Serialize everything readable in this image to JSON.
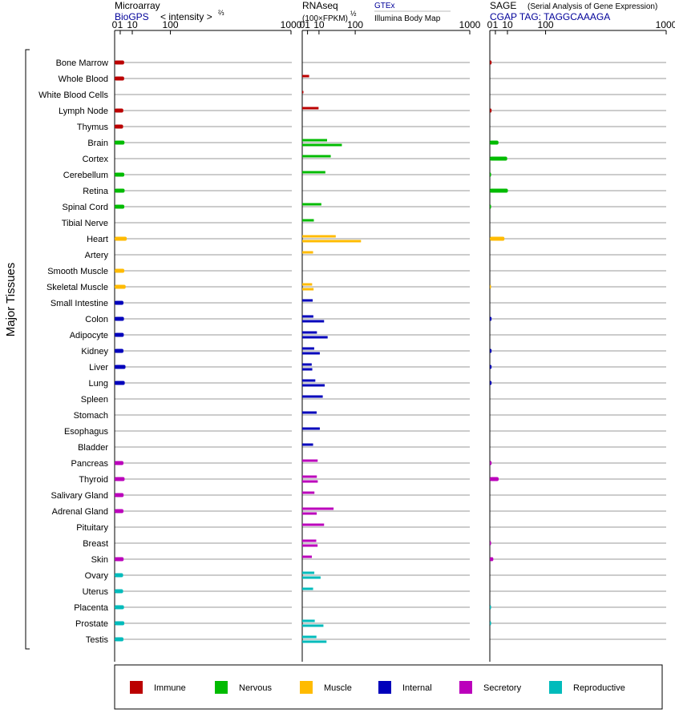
{
  "header": {
    "microarray_title": "Microarray",
    "microarray_source": "BioGPS",
    "microarray_unit": "< intensity >",
    "microarray_exp": "⅔",
    "rnaseq_title": "RNAseq",
    "rnaseq_unit": "(100×FPKM)",
    "rnaseq_exp": "½",
    "rnaseq_source1": "GTEx",
    "rnaseq_source2": "Illumina Body Map",
    "sage_title": "SAGE",
    "sage_subtitle": "(Serial Analysis of Gene Expression)",
    "sage_tag": "CGAP TAG: TAGGCAAAGA",
    "y_group_label": "Major Tissues"
  },
  "colors": {
    "Immune": "#bb0000",
    "Nervous": "#00bb00",
    "Muscle": "#ffbb00",
    "Internal": "#0000bb",
    "Secretory": "#bb00bb",
    "Reproductive": "#00bbbb",
    "source_blue": "#000099",
    "row_line": "#999999",
    "axis": "#000000"
  },
  "legend": [
    {
      "label": "Immune",
      "color": "#bb0000"
    },
    {
      "label": "Nervous",
      "color": "#00bb00"
    },
    {
      "label": "Muscle",
      "color": "#ffbb00"
    },
    {
      "label": "Internal",
      "color": "#0000bb"
    },
    {
      "label": "Secretory",
      "color": "#bb00bb"
    },
    {
      "label": "Reproductive",
      "color": "#00bbbb"
    }
  ],
  "chart_data": {
    "type": "bar",
    "orientation": "horizontal",
    "x_ticks": [
      "0",
      "1",
      "10",
      "100",
      "1000"
    ],
    "x_tick_values": [
      0,
      1,
      10,
      100,
      1000
    ],
    "x_range": [
      0,
      1000
    ],
    "x_scale": "power-transformed (0, 1, 10, 100, 1000)",
    "grid": "horizontal row lines",
    "legend_position": "bottom",
    "categories": [
      "Bone Marrow",
      "Whole Blood",
      "White Blood Cells",
      "Lymph Node",
      "Thymus",
      "Brain",
      "Cortex",
      "Cerebellum",
      "Retina",
      "Spinal Cord",
      "Tibial Nerve",
      "Heart",
      "Artery",
      "Smooth Muscle",
      "Skeletal Muscle",
      "Small Intestine",
      "Colon",
      "Adipocyte",
      "Kidney",
      "Liver",
      "Lung",
      "Spleen",
      "Stomach",
      "Esophagus",
      "Bladder",
      "Pancreas",
      "Thyroid",
      "Salivary Gland",
      "Adrenal Gland",
      "Pituitary",
      "Breast",
      "Skin",
      "Ovary",
      "Uterus",
      "Placenta",
      "Prostate",
      "Testis"
    ],
    "groups": [
      "Immune",
      "Immune",
      "Immune",
      "Immune",
      "Immune",
      "Nervous",
      "Nervous",
      "Nervous",
      "Nervous",
      "Nervous",
      "Nervous",
      "Muscle",
      "Muscle",
      "Muscle",
      "Muscle",
      "Internal",
      "Internal",
      "Internal",
      "Internal",
      "Internal",
      "Internal",
      "Internal",
      "Internal",
      "Internal",
      "Internal",
      "Secretory",
      "Secretory",
      "Secretory",
      "Secretory",
      "Secretory",
      "Secretory",
      "Secretory",
      "Reproductive",
      "Reproductive",
      "Reproductive",
      "Reproductive",
      "Reproductive"
    ],
    "panels": [
      {
        "name": "Microarray",
        "values": [
          [
            2.9
          ],
          [
            2.9
          ],
          [
            null
          ],
          [
            2.4
          ],
          [
            2.3
          ],
          [
            3.1
          ],
          [
            null
          ],
          [
            3.0
          ],
          [
            3.2
          ],
          [
            3.0
          ],
          [
            null
          ],
          [
            4.7
          ],
          [
            null
          ],
          [
            3.0
          ],
          [
            3.9
          ],
          [
            2.5
          ],
          [
            2.8
          ],
          [
            2.7
          ],
          [
            2.5
          ],
          [
            3.8
          ],
          [
            3.3
          ],
          [
            null
          ],
          [
            null
          ],
          [
            null
          ],
          [
            null
          ],
          [
            2.5
          ],
          [
            3.2
          ],
          [
            2.6
          ],
          [
            2.5
          ],
          [
            null
          ],
          [
            null
          ],
          [
            2.6
          ],
          [
            2.3
          ],
          [
            2.3
          ],
          [
            2.8
          ],
          [
            3.0
          ],
          [
            2.5
          ]
        ]
      },
      {
        "name": "RNAseq",
        "values": [
          [
            null
          ],
          [
            1.7
          ],
          [
            0.05
          ],
          [
            9.5
          ],
          [
            null
          ],
          [
            22,
            56
          ],
          [
            29
          ],
          [
            19
          ],
          [
            null
          ],
          [
            13
          ],
          [
            4.8
          ],
          [
            40,
            123
          ],
          [
            4.2
          ],
          [
            null
          ],
          [
            3.5,
            4.6
          ],
          [
            3.9
          ],
          [
            4.4,
            17
          ],
          [
            7.7,
            23
          ],
          [
            5.1,
            11
          ],
          [
            3.2,
            3.6
          ],
          [
            6.1,
            18
          ],
          [
            15
          ],
          [
            7.4
          ],
          [
            11
          ],
          [
            4.2
          ],
          [
            8.5
          ],
          [
            7.6,
            8.6
          ],
          [
            5.3
          ],
          [
            35,
            7.5
          ],
          [
            17
          ],
          [
            7.0,
            8.4
          ],
          [
            3.3
          ],
          [
            5.2,
            12
          ],
          [
            4.2
          ],
          [
            null
          ],
          [
            5.6,
            16
          ],
          [
            7.2,
            21
          ]
        ]
      },
      {
        "name": "SAGE",
        "values": [
          [
            0.1
          ],
          [
            null
          ],
          [
            null
          ],
          [
            0.1
          ],
          [
            null
          ],
          [
            2.4
          ],
          [
            9.7
          ],
          [
            0.05
          ],
          [
            10.5
          ],
          [
            0.05
          ],
          [
            null
          ],
          [
            6.9
          ],
          [
            null
          ],
          [
            null
          ],
          [
            0.03
          ],
          [
            null
          ],
          [
            0.1
          ],
          [
            null
          ],
          [
            0.1
          ],
          [
            0.1
          ],
          [
            0.1
          ],
          [
            null
          ],
          [
            null
          ],
          [
            null
          ],
          [
            null
          ],
          [
            0.1
          ],
          [
            2.5
          ],
          [
            null
          ],
          [
            null
          ],
          [
            null
          ],
          [
            0.05
          ],
          [
            0.4
          ],
          [
            null
          ],
          [
            null
          ],
          [
            0.05
          ],
          [
            0.05
          ],
          [
            null
          ]
        ]
      }
    ]
  }
}
